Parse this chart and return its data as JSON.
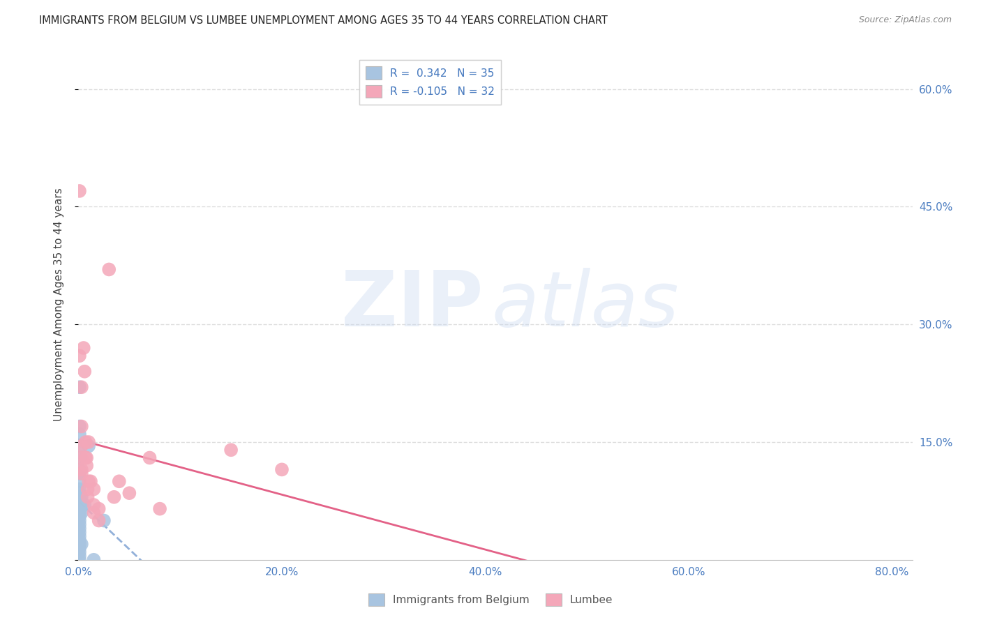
{
  "title": "IMMIGRANTS FROM BELGIUM VS LUMBEE UNEMPLOYMENT AMONG AGES 35 TO 44 YEARS CORRELATION CHART",
  "source": "Source: ZipAtlas.com",
  "ylabel_label": "Unemployment Among Ages 35 to 44 years",
  "legend_labels": [
    "Immigrants from Belgium",
    "Lumbee"
  ],
  "r_blue": "0.342",
  "n_blue": "35",
  "r_pink": "-0.105",
  "n_pink": "32",
  "blue_color": "#a8c4e0",
  "pink_color": "#f4a7b9",
  "blue_line_color": "#4a7cc0",
  "pink_line_color": "#e0507a",
  "background_color": "#ffffff",
  "grid_color": "#dddddd",
  "blue_scatter": [
    [
      0.001,
      0.22
    ],
    [
      0.001,
      0.17
    ],
    [
      0.001,
      0.16
    ],
    [
      0.001,
      0.145
    ],
    [
      0.001,
      0.13
    ],
    [
      0.001,
      0.115
    ],
    [
      0.001,
      0.11
    ],
    [
      0.001,
      0.1
    ],
    [
      0.001,
      0.09
    ],
    [
      0.001,
      0.085
    ],
    [
      0.001,
      0.08
    ],
    [
      0.001,
      0.075
    ],
    [
      0.001,
      0.07
    ],
    [
      0.001,
      0.065
    ],
    [
      0.001,
      0.06
    ],
    [
      0.001,
      0.055
    ],
    [
      0.001,
      0.05
    ],
    [
      0.001,
      0.045
    ],
    [
      0.001,
      0.04
    ],
    [
      0.001,
      0.035
    ],
    [
      0.001,
      0.03
    ],
    [
      0.001,
      0.025
    ],
    [
      0.001,
      0.02
    ],
    [
      0.001,
      0.015
    ],
    [
      0.001,
      0.01
    ],
    [
      0.001,
      0.005
    ],
    [
      0.001,
      0.0
    ],
    [
      0.003,
      0.08
    ],
    [
      0.003,
      0.07
    ],
    [
      0.003,
      0.06
    ],
    [
      0.003,
      0.02
    ],
    [
      0.006,
      0.07
    ],
    [
      0.01,
      0.145
    ],
    [
      0.015,
      0.0
    ],
    [
      0.025,
      0.05
    ]
  ],
  "pink_scatter": [
    [
      0.001,
      0.47
    ],
    [
      0.001,
      0.26
    ],
    [
      0.003,
      0.22
    ],
    [
      0.003,
      0.17
    ],
    [
      0.003,
      0.145
    ],
    [
      0.003,
      0.13
    ],
    [
      0.003,
      0.115
    ],
    [
      0.003,
      0.11
    ],
    [
      0.005,
      0.27
    ],
    [
      0.006,
      0.24
    ],
    [
      0.007,
      0.15
    ],
    [
      0.007,
      0.13
    ],
    [
      0.008,
      0.13
    ],
    [
      0.008,
      0.12
    ],
    [
      0.009,
      0.09
    ],
    [
      0.009,
      0.08
    ],
    [
      0.01,
      0.15
    ],
    [
      0.01,
      0.1
    ],
    [
      0.012,
      0.1
    ],
    [
      0.015,
      0.09
    ],
    [
      0.015,
      0.07
    ],
    [
      0.015,
      0.06
    ],
    [
      0.02,
      0.065
    ],
    [
      0.02,
      0.05
    ],
    [
      0.03,
      0.37
    ],
    [
      0.035,
      0.08
    ],
    [
      0.04,
      0.1
    ],
    [
      0.05,
      0.085
    ],
    [
      0.07,
      0.13
    ],
    [
      0.08,
      0.065
    ],
    [
      0.15,
      0.14
    ],
    [
      0.2,
      0.115
    ]
  ],
  "xlim": [
    0.0,
    0.82
  ],
  "ylim": [
    0.0,
    0.65
  ],
  "xaxis_percent_ticks": [
    0.0,
    0.2,
    0.4,
    0.6,
    0.8
  ],
  "yaxis_percent_ticks": [
    0.0,
    0.15,
    0.3,
    0.45,
    0.6
  ]
}
